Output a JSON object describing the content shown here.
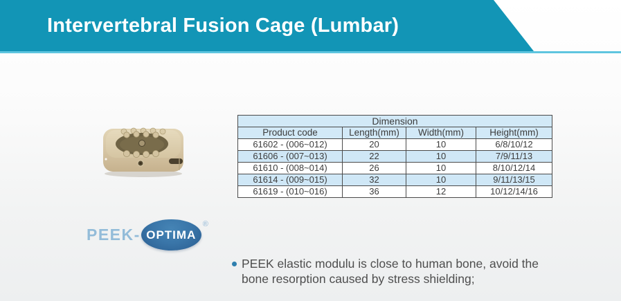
{
  "header": {
    "title": "Intervertebral Fusion Cage (Lumbar)"
  },
  "table": {
    "title": "Dimension",
    "columns": [
      "Product code",
      "Length(mm)",
      "Width(mm)",
      "Height(mm)"
    ],
    "rows": [
      [
        "61602 - (006~012)",
        "20",
        "10",
        "6/8/10/12"
      ],
      [
        "61606 - (007~013)",
        "22",
        "10",
        "7/9/11/13"
      ],
      [
        "61610 - (008~014)",
        "26",
        "10",
        "8/10/12/14"
      ],
      [
        "61614 - (009~015)",
        "32",
        "10",
        "9/11/13/15"
      ],
      [
        "61619 - (010~016)",
        "36",
        "12",
        "10/12/14/16"
      ]
    ]
  },
  "logo": {
    "prefix": "PEEK-",
    "oval_text": "OPTIMA",
    "registered": "®"
  },
  "bullets": [
    "PEEK elastic modulu is close to human bone, avoid the bone resorption caused by stress shielding;"
  ],
  "product_image": {
    "description": "beige PEEK intervertebral fusion cage with serrated top and central graft window"
  },
  "colors": {
    "banner": "#1295b6",
    "banner_underline": "#5ec5df",
    "table_header_bg": "#d2e9f7",
    "table_alt_row_bg": "#cfe7f6",
    "table_border": "#4a4a4a",
    "logo_oval": "#2f6798",
    "logo_prefix_text": "#93bcd9",
    "bullet_dot": "#2e7fae",
    "cage_body": "#d6c5a5"
  }
}
